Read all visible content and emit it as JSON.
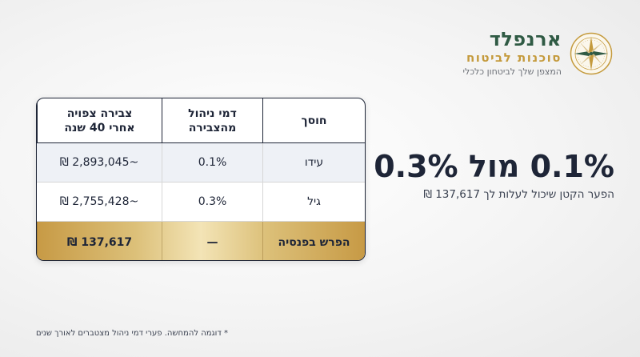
{
  "brand": {
    "name": "ארנפלד",
    "subtitle": "סוכנות לביטוח",
    "tagline": "המצפן שלך לביטחון כלכלי"
  },
  "headline": {
    "main": "0.1% מול 0.3%",
    "sub": "הפער הקטן שיכול לעלות לך 137,617 ₪"
  },
  "table": {
    "headers": {
      "saver": "חוסך",
      "fees": "דמי ניהול\nמהצבירה",
      "projected": "צבירה צפויה\nאחרי 40 שנה"
    },
    "rows": [
      {
        "saver": "עידו",
        "fees": "0.1%",
        "projected": "~2,893,045 ₪"
      },
      {
        "saver": "גיל",
        "fees": "0.3%",
        "projected": "~2,755,428 ₪"
      }
    ],
    "total": {
      "label": "הפרש בפנסיה",
      "fees": "—",
      "value": "137,617 ₪"
    }
  },
  "footnote": "* דוגמה להמחשה. פערי דמי ניהול מצטברים לאורך שנים",
  "colors": {
    "navy": "#1e2537",
    "green": "#2f5a44",
    "gold": "#c49a3c",
    "row_alt": "#eef1f6"
  },
  "icons": {
    "logo": "compass-icon"
  }
}
